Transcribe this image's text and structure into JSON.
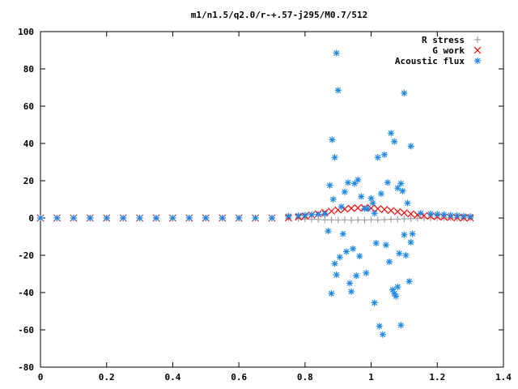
{
  "chart_data": {
    "type": "scatter",
    "title": "m1/n1.5/q2.0/r-+.57-j295/M0.7/512",
    "xlabel": "",
    "ylabel": "",
    "xlim": [
      0,
      1.4
    ],
    "ylim": [
      -80,
      100
    ],
    "xticks": [
      "0",
      "0.2",
      "0.4",
      "0.6",
      "0.8",
      "1",
      "1.2",
      "1.4"
    ],
    "yticks": [
      "-80",
      "-60",
      "-40",
      "-20",
      "0",
      "20",
      "40",
      "60",
      "80",
      "100"
    ],
    "grid": false,
    "legend": "top-right",
    "series": [
      {
        "name": "R stress",
        "marker": "plus",
        "color": "#a0a0a0",
        "x": [
          0.0,
          0.05,
          0.1,
          0.15,
          0.2,
          0.25,
          0.3,
          0.35,
          0.4,
          0.45,
          0.5,
          0.55,
          0.6,
          0.65,
          0.7,
          0.75,
          0.78,
          0.8,
          0.82,
          0.84,
          0.86,
          0.88,
          0.9,
          0.92,
          0.94,
          0.96,
          0.98,
          1.0,
          1.02,
          1.04,
          1.06,
          1.08,
          1.1,
          1.12,
          1.14,
          1.16,
          1.18,
          1.2,
          1.22,
          1.24,
          1.26,
          1.28,
          1.3
        ],
        "y": [
          0,
          0,
          0,
          0,
          0,
          0,
          0,
          0,
          0,
          0,
          0,
          0,
          0,
          0,
          0,
          0,
          -0.3,
          -0.5,
          -0.7,
          -0.8,
          -1.0,
          -1.0,
          -1.1,
          -1.0,
          -1.2,
          -1.0,
          -1.1,
          -0.9,
          -1.0,
          -0.9,
          -0.7,
          -0.6,
          -0.4,
          -0.3,
          -0.2,
          0,
          0,
          0,
          0,
          0,
          0,
          0,
          0
        ]
      },
      {
        "name": "G work",
        "marker": "cross",
        "color": "#ff0000",
        "x": [
          0.0,
          0.05,
          0.1,
          0.15,
          0.2,
          0.25,
          0.3,
          0.35,
          0.4,
          0.45,
          0.5,
          0.55,
          0.6,
          0.65,
          0.7,
          0.75,
          0.78,
          0.8,
          0.82,
          0.84,
          0.86,
          0.88,
          0.9,
          0.92,
          0.94,
          0.96,
          0.98,
          1.0,
          1.02,
          1.04,
          1.06,
          1.08,
          1.1,
          1.12,
          1.14,
          1.16,
          1.18,
          1.2,
          1.22,
          1.24,
          1.26,
          1.28,
          1.3
        ],
        "y": [
          0,
          0,
          0,
          0,
          0,
          0,
          0,
          0,
          0,
          0,
          0,
          0,
          0,
          0,
          0,
          0.1,
          0.5,
          1.0,
          1.6,
          2.3,
          3.0,
          3.7,
          4.3,
          4.8,
          5.2,
          5.4,
          5.5,
          5.3,
          5.0,
          4.6,
          4.0,
          3.4,
          2.8,
          2.2,
          1.7,
          1.3,
          1.0,
          0.7,
          0.5,
          0.3,
          0.2,
          0.1,
          0
        ]
      },
      {
        "name": "Acoustic flux",
        "marker": "star",
        "color": "#1e88e5",
        "x": [
          0.0,
          0.05,
          0.1,
          0.15,
          0.2,
          0.25,
          0.3,
          0.35,
          0.4,
          0.45,
          0.5,
          0.55,
          0.6,
          0.65,
          0.7,
          0.75,
          0.78,
          0.8,
          0.82,
          0.84,
          0.86,
          1.15,
          1.18,
          1.2,
          1.22,
          1.24,
          1.26,
          1.28,
          1.3,
          0.895,
          0.9,
          0.95,
          1.0,
          1.02,
          1.04,
          1.06,
          1.08,
          1.1,
          0.882,
          0.89,
          0.93,
          0.96,
          0.98,
          1.05,
          1.07,
          1.12,
          0.875,
          0.91,
          0.99,
          1.01,
          1.03,
          1.09,
          1.11,
          0.885,
          0.92,
          0.97,
          1.005,
          1.095,
          0.87,
          0.915,
          0.945,
          1.055,
          1.085,
          1.125,
          0.88,
          0.935,
          1.015,
          1.065,
          1.115,
          0.905,
          0.955,
          1.025,
          1.075,
          1.105,
          0.89,
          0.94,
          1.01,
          1.07,
          1.12,
          0.895,
          0.965,
          1.035,
          1.045,
          1.09,
          0.925,
          0.985,
          1.08,
          1.1
        ],
        "y": [
          0,
          0,
          0,
          0,
          0,
          0,
          0,
          0,
          0,
          0,
          0,
          0,
          0,
          0,
          0,
          1.0,
          1.3,
          1.5,
          1.8,
          2.0,
          2.2,
          2.5,
          2.2,
          2.0,
          1.8,
          1.5,
          1.3,
          1.0,
          0.8,
          88.5,
          68.5,
          18.5,
          10.5,
          32.5,
          34.0,
          45.5,
          16.0,
          67.0,
          42.0,
          32.5,
          19.0,
          20.5,
          5.0,
          19.0,
          41.0,
          38.5,
          17.5,
          6.0,
          5.0,
          2.5,
          13.0,
          18.5,
          8.0,
          10.0,
          14.0,
          11.5,
          8.0,
          14.5,
          -7.0,
          -8.5,
          -16.5,
          -23.5,
          -19.0,
          -8.5,
          -40.5,
          -35.0,
          -13.5,
          -38.5,
          -34.0,
          -21.0,
          -31.0,
          -58.0,
          -42.0,
          -20.0,
          -24.5,
          -39.5,
          -45.5,
          -40.5,
          -13.0,
          -30.5,
          -20.5,
          -62.5,
          -14.5,
          -57.5,
          -18.0,
          -29.5,
          -37.0,
          -9.0
        ]
      }
    ]
  }
}
